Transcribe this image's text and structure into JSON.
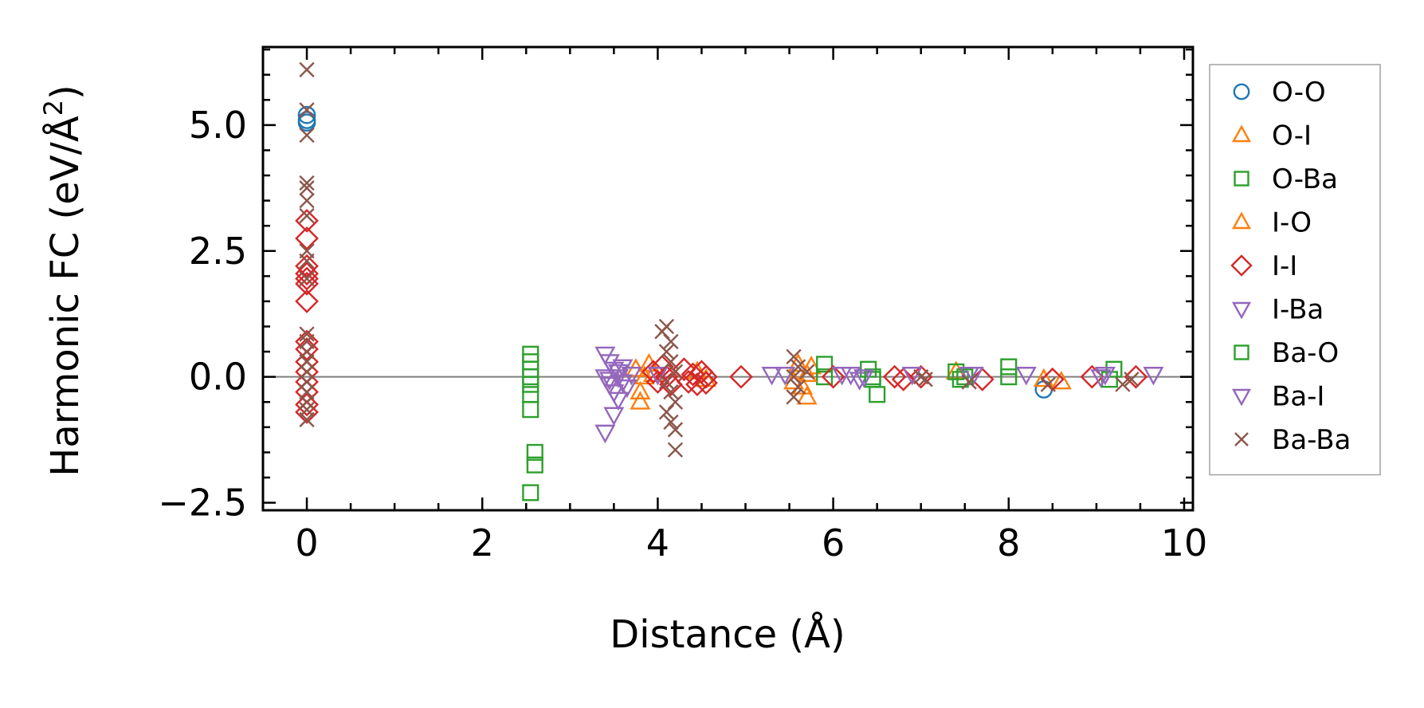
{
  "chart_data": {
    "type": "scatter",
    "title": "",
    "xlabel": "Distance (Å)",
    "ylabel_main": "Harmonic FC (eV/Å",
    "ylabel_sup": "2",
    "ylabel_close": ")",
    "xlim": [
      -0.5,
      10.1
    ],
    "ylim": [
      -2.65,
      6.55
    ],
    "xticks": [
      0,
      2,
      4,
      6,
      8,
      10
    ],
    "xtick_labels": [
      "0",
      "2",
      "4",
      "6",
      "8",
      "10"
    ],
    "yticks": [
      -2.5,
      0.0,
      2.5,
      5.0
    ],
    "ytick_labels": [
      "−2.5",
      "0.0",
      "2.5",
      "5.0"
    ],
    "x_minor_step": 0.5,
    "y_minor_step": 0.5,
    "zero_line": true,
    "legend_position": "outside-right",
    "series": [
      {
        "name": "O-O",
        "marker": "circle",
        "color": "#1f77b4",
        "points": [
          [
            0,
            5.2
          ],
          [
            0,
            5.1
          ],
          [
            0,
            5.05
          ],
          [
            8.4,
            -0.25
          ]
        ]
      },
      {
        "name": "O-I",
        "marker": "triangle-up",
        "color": "#ff7f0e",
        "points": [
          [
            3.75,
            0.15
          ],
          [
            3.8,
            -0.3
          ],
          [
            3.8,
            -0.5
          ],
          [
            3.85,
            0.0
          ],
          [
            3.9,
            0.25
          ],
          [
            5.55,
            -0.1
          ],
          [
            5.6,
            0.25
          ],
          [
            5.65,
            -0.2
          ],
          [
            5.7,
            -0.4
          ],
          [
            5.75,
            0.2
          ],
          [
            7.4,
            0.1
          ],
          [
            8.4,
            -0.05
          ],
          [
            8.6,
            -0.1
          ]
        ]
      },
      {
        "name": "O-Ba",
        "marker": "square",
        "color": "#2ca02c",
        "points": [
          [
            2.55,
            0.45
          ],
          [
            2.55,
            0.3
          ],
          [
            2.55,
            0.15
          ],
          [
            2.55,
            0.0
          ],
          [
            2.55,
            -0.15
          ],
          [
            2.55,
            -0.35
          ],
          [
            2.55,
            -0.65
          ],
          [
            2.6,
            -1.5
          ],
          [
            2.6,
            -1.75
          ],
          [
            2.55,
            -2.3
          ],
          [
            5.9,
            0.25
          ],
          [
            5.9,
            0.0
          ],
          [
            6.4,
            0.15
          ],
          [
            6.45,
            -0.05
          ],
          [
            6.5,
            -0.35
          ],
          [
            7.4,
            0.1
          ],
          [
            7.45,
            -0.05
          ],
          [
            8.0,
            0.2
          ],
          [
            8.0,
            0.0
          ],
          [
            9.2,
            0.15
          ],
          [
            9.15,
            -0.05
          ]
        ]
      },
      {
        "name": "I-O",
        "marker": "triangle-up",
        "color": "#ff7f0e",
        "points": [
          [
            3.95,
            0.05
          ],
          [
            4.45,
            0.1
          ],
          [
            4.55,
            -0.05
          ],
          [
            5.7,
            0.05
          ]
        ]
      },
      {
        "name": "I-I",
        "marker": "diamond",
        "color": "#d62728",
        "points": [
          [
            0,
            3.1
          ],
          [
            0,
            2.75
          ],
          [
            0,
            2.2
          ],
          [
            0,
            2.05
          ],
          [
            0,
            1.95
          ],
          [
            0,
            1.85
          ],
          [
            0,
            1.5
          ],
          [
            0,
            0.7
          ],
          [
            0,
            0.55
          ],
          [
            0,
            0.3
          ],
          [
            0,
            0.1
          ],
          [
            0,
            -0.1
          ],
          [
            0,
            -0.3
          ],
          [
            0,
            -0.55
          ],
          [
            0,
            -0.7
          ],
          [
            3.95,
            0.1
          ],
          [
            4.0,
            -0.1
          ],
          [
            4.05,
            0.2
          ],
          [
            4.1,
            0.0
          ],
          [
            4.15,
            -0.15
          ],
          [
            4.3,
            0.15
          ],
          [
            4.35,
            -0.1
          ],
          [
            4.4,
            0.05
          ],
          [
            4.45,
            -0.15
          ],
          [
            4.5,
            0.1
          ],
          [
            4.55,
            0.0
          ],
          [
            4.55,
            -0.12
          ],
          [
            4.95,
            0.0
          ],
          [
            6.0,
            0.0
          ],
          [
            6.7,
            0.0
          ],
          [
            6.8,
            -0.05
          ],
          [
            7.0,
            0.0
          ],
          [
            7.7,
            -0.05
          ],
          [
            8.5,
            -0.05
          ],
          [
            8.95,
            0.0
          ],
          [
            9.45,
            0.0
          ]
        ]
      },
      {
        "name": "I-Ba",
        "marker": "triangle-down",
        "color": "#9467bd",
        "points": [
          [
            3.4,
            0.45
          ],
          [
            3.45,
            0.3
          ],
          [
            3.5,
            0.15
          ],
          [
            3.4,
            0.0
          ],
          [
            3.45,
            -0.15
          ],
          [
            3.5,
            -0.3
          ],
          [
            3.55,
            -0.45
          ],
          [
            3.5,
            -0.75
          ],
          [
            3.4,
            -1.1
          ],
          [
            3.55,
            0.0
          ],
          [
            3.6,
            0.2
          ],
          [
            3.65,
            -0.2
          ],
          [
            3.7,
            0.05
          ],
          [
            5.3,
            0.05
          ],
          [
            6.2,
            0.05
          ],
          [
            6.3,
            -0.05
          ],
          [
            6.9,
            0.05
          ],
          [
            7.6,
            0.05
          ],
          [
            8.2,
            0.05
          ],
          [
            9.1,
            0.05
          ],
          [
            9.65,
            0.05
          ]
        ]
      },
      {
        "name": "Ba-O",
        "marker": "square",
        "color": "#2ca02c",
        "points": [
          [
            6.45,
            0.0
          ],
          [
            7.5,
            0.0
          ]
        ]
      },
      {
        "name": "Ba-I",
        "marker": "triangle-down",
        "color": "#9467bd",
        "points": [
          [
            3.45,
            -0.05
          ],
          [
            3.55,
            0.1
          ],
          [
            3.6,
            -0.1
          ],
          [
            4.0,
            0.05
          ],
          [
            5.45,
            0.05
          ],
          [
            6.1,
            0.05
          ],
          [
            6.35,
            0.0
          ],
          [
            7.55,
            0.05
          ],
          [
            9.05,
            0.0
          ]
        ]
      },
      {
        "name": "Ba-Ba",
        "marker": "x",
        "color": "#8c564b",
        "points": [
          [
            0,
            6.1
          ],
          [
            0,
            5.3
          ],
          [
            0,
            4.8
          ],
          [
            0,
            3.85
          ],
          [
            0,
            3.75
          ],
          [
            0,
            3.5
          ],
          [
            0,
            3.2
          ],
          [
            0,
            2.5
          ],
          [
            0,
            2.3
          ],
          [
            0,
            1.95
          ],
          [
            0,
            0.85
          ],
          [
            0,
            0.7
          ],
          [
            0,
            0.5
          ],
          [
            0,
            0.3
          ],
          [
            0,
            0.1
          ],
          [
            0,
            -0.1
          ],
          [
            0,
            -0.3
          ],
          [
            0,
            -0.5
          ],
          [
            0,
            -0.65
          ],
          [
            0,
            -0.85
          ],
          [
            4.05,
            0.9
          ],
          [
            4.1,
            1.0
          ],
          [
            4.15,
            0.7
          ],
          [
            4.1,
            0.5
          ],
          [
            4.15,
            0.3
          ],
          [
            4.2,
            0.1
          ],
          [
            4.1,
            -0.1
          ],
          [
            4.15,
            -0.3
          ],
          [
            4.2,
            -0.5
          ],
          [
            4.1,
            -0.7
          ],
          [
            4.15,
            -0.9
          ],
          [
            4.2,
            -1.05
          ],
          [
            4.2,
            -1.45
          ],
          [
            5.55,
            0.4
          ],
          [
            5.6,
            0.2
          ],
          [
            5.55,
            0.0
          ],
          [
            5.6,
            -0.2
          ],
          [
            5.55,
            -0.4
          ],
          [
            5.7,
            0.1
          ],
          [
            7.0,
            0.0
          ],
          [
            7.05,
            -0.05
          ],
          [
            7.55,
            -0.1
          ],
          [
            8.45,
            -0.15
          ],
          [
            9.3,
            -0.15
          ],
          [
            9.4,
            -0.05
          ]
        ]
      }
    ]
  }
}
